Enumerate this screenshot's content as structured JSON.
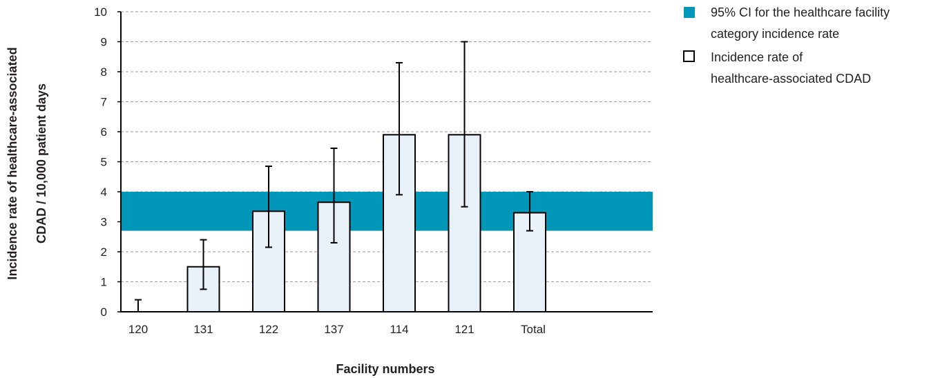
{
  "chart_data": {
    "type": "bar",
    "categories": [
      "120",
      "131",
      "122",
      "137",
      "114",
      "121",
      "Total"
    ],
    "values": [
      0,
      1.5,
      3.35,
      3.65,
      5.9,
      5.9,
      3.3
    ],
    "ci_lower": [
      0,
      0.75,
      2.15,
      2.3,
      3.9,
      3.5,
      2.7
    ],
    "ci_upper": [
      0.4,
      2.4,
      4.85,
      5.45,
      8.3,
      9.0,
      4.0
    ],
    "band": {
      "lower": 2.7,
      "upper": 4.0
    },
    "xlabel": "Facility numbers",
    "ylabel_line1": "Incidence rate of healthcare-associated",
    "ylabel_line2": "CDAD / 10,000 patient days",
    "ylim": [
      0,
      10
    ],
    "yticks": [
      "0",
      "1",
      "2",
      "3",
      "4",
      "5",
      "6",
      "7",
      "8",
      "9",
      "10"
    ],
    "grid": "horizontal dashed",
    "legend": {
      "position": "top-right",
      "band_label_line1": "95% CI for the healthcare facility",
      "band_label_line2": "category incidence rate",
      "bar_label_line1": "Incidence rate of",
      "bar_label_line2": "healthcare-associated CDAD"
    },
    "colors": {
      "band": "#0097b9",
      "bar_fill": "#e8f1f8",
      "bar_stroke": "#000000",
      "grid": "#9a9a9a",
      "text": "#231f20"
    }
  }
}
